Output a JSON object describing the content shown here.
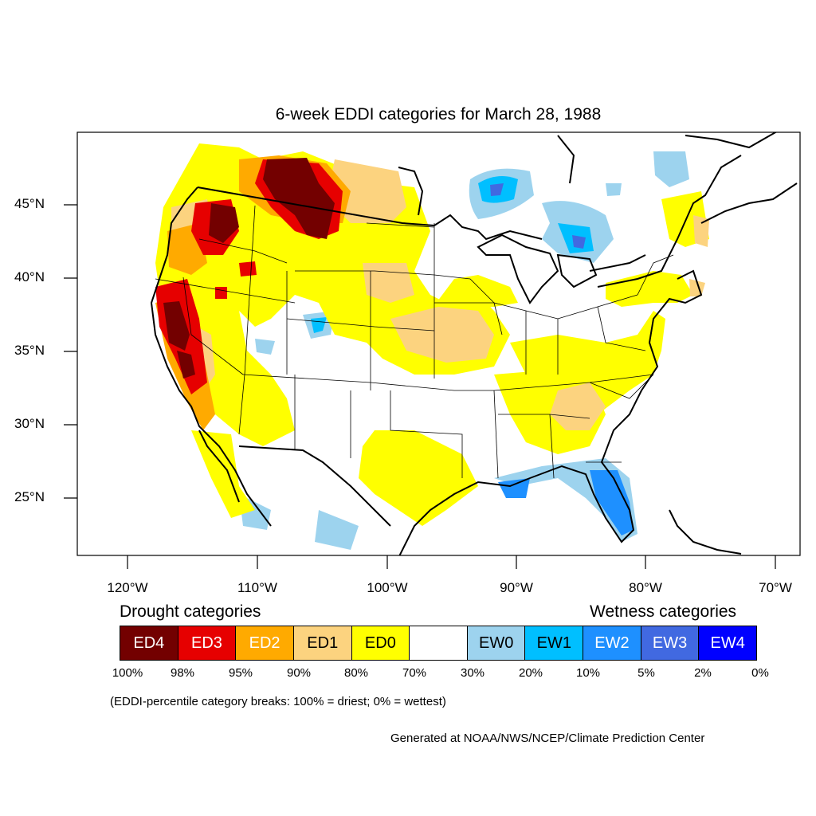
{
  "title": "6-week EDDI categories for March 28, 1988",
  "map": {
    "y_ticks": [
      "45°N",
      "40°N",
      "35°N",
      "30°N",
      "25°N"
    ],
    "x_ticks": [
      "120°W",
      "110°W",
      "100°W",
      "90°W",
      "80°W",
      "70°W"
    ]
  },
  "legend": {
    "drought_heading": "Drought categories",
    "wetness_heading": "Wetness categories",
    "categories": [
      {
        "label": "ED4",
        "color": "#730000",
        "text_color": "#ffffff"
      },
      {
        "label": "ED3",
        "color": "#e60000",
        "text_color": "#ffffff"
      },
      {
        "label": "ED2",
        "color": "#ffaa00",
        "text_color": "#ffffff"
      },
      {
        "label": "ED1",
        "color": "#fcd37f",
        "text_color": "#000000"
      },
      {
        "label": "ED0",
        "color": "#ffff00",
        "text_color": "#000000"
      },
      {
        "label": "",
        "color": "#ffffff",
        "text_color": "#000000"
      },
      {
        "label": "EW0",
        "color": "#9dd3ee",
        "text_color": "#000000"
      },
      {
        "label": "EW1",
        "color": "#00bfff",
        "text_color": "#000000"
      },
      {
        "label": "EW2",
        "color": "#1e90ff",
        "text_color": "#ffffff"
      },
      {
        "label": "EW3",
        "color": "#4169e1",
        "text_color": "#ffffff"
      },
      {
        "label": "EW4",
        "color": "#0000ff",
        "text_color": "#ffffff"
      }
    ],
    "breaks": [
      "100%",
      "98%",
      "95%",
      "90%",
      "80%",
      "70%",
      "30%",
      "20%",
      "10%",
      "5%",
      "2%",
      "0%"
    ]
  },
  "note": "(EDDI-percentile category breaks: 100% = driest; 0% = wettest)",
  "credit": "Generated at NOAA/NWS/NCEP/Climate Prediction Center"
}
